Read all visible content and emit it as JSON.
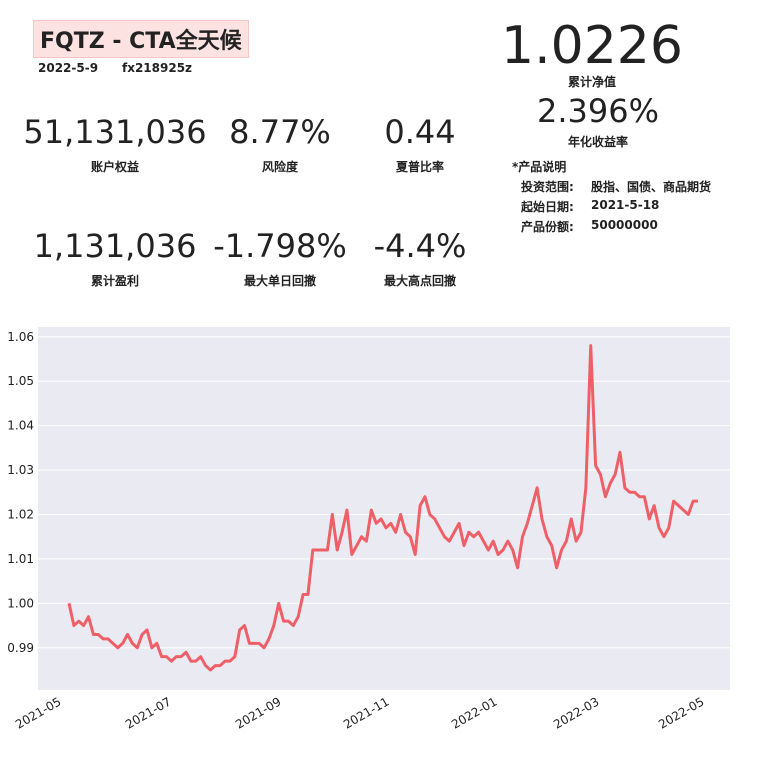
{
  "header": {
    "title": "FQTZ - CTA全天候",
    "date": "2022-5-9",
    "account": "fx218925z"
  },
  "summary": [
    {
      "value": "1.0226",
      "label": "累计净值"
    },
    {
      "value": "2.396%",
      "label": "年化收益率"
    }
  ],
  "metrics": [
    {
      "value": "51,131,036",
      "label": "账户权益"
    },
    {
      "value": "8.77%",
      "label": "风险度"
    },
    {
      "value": "0.44",
      "label": "夏普比率"
    },
    {
      "value": "1,131,036",
      "label": "累计盈利"
    },
    {
      "value": "-1.798%",
      "label": "最大单日回撤"
    },
    {
      "value": "-4.4%",
      "label": "最大高点回撤"
    }
  ],
  "product": {
    "title": "*产品说明",
    "rows": [
      [
        "投资范围:",
        "股指、国债、商品期货"
      ],
      [
        "起始日期:",
        "2021-5-18"
      ],
      [
        "产品份额:",
        "50000000"
      ]
    ]
  },
  "chart_data": {
    "type": "line",
    "color": "#ef5f67",
    "grid": true,
    "xlim": [
      -6.36,
      135.56
    ],
    "xticks": [
      {
        "value": -1.44,
        "label": "2021-05"
      },
      {
        "value": 21.12,
        "label": "2021-07"
      },
      {
        "value": 43.68,
        "label": "2021-09"
      },
      {
        "value": 65.83,
        "label": "2021-11"
      },
      {
        "value": 87.98,
        "label": "2022-01"
      },
      {
        "value": 108.9,
        "label": "2022-03"
      },
      {
        "value": 130.44,
        "label": "2022-05"
      }
    ],
    "ylim": [
      0.9805,
      1.0622
    ],
    "yticks": [
      {
        "value": 0.99,
        "label": "0.99"
      },
      {
        "value": 1.0,
        "label": "1.00"
      },
      {
        "value": 1.01,
        "label": "1.01"
      },
      {
        "value": 1.02,
        "label": "1.02"
      },
      {
        "value": 1.03,
        "label": "1.03"
      },
      {
        "value": 1.04,
        "label": "1.04"
      },
      {
        "value": 1.05,
        "label": "1.05"
      },
      {
        "value": 1.06,
        "label": "1.06"
      }
    ],
    "values": [
      1.0,
      0.995,
      0.996,
      0.995,
      0.997,
      0.993,
      0.993,
      0.992,
      0.992,
      0.991,
      0.99,
      0.991,
      0.993,
      0.991,
      0.99,
      0.993,
      0.994,
      0.99,
      0.991,
      0.988,
      0.988,
      0.987,
      0.988,
      0.988,
      0.989,
      0.987,
      0.987,
      0.988,
      0.986,
      0.985,
      0.986,
      0.986,
      0.987,
      0.987,
      0.988,
      0.994,
      0.995,
      0.991,
      0.991,
      0.991,
      0.99,
      0.992,
      0.995,
      1.0,
      0.996,
      0.996,
      0.995,
      0.997,
      1.002,
      1.002,
      1.012,
      1.012,
      1.012,
      1.012,
      1.02,
      1.012,
      1.016,
      1.021,
      1.011,
      1.013,
      1.015,
      1.014,
      1.021,
      1.018,
      1.019,
      1.017,
      1.018,
      1.016,
      1.02,
      1.016,
      1.015,
      1.011,
      1.022,
      1.024,
      1.02,
      1.019,
      1.017,
      1.015,
      1.014,
      1.016,
      1.018,
      1.013,
      1.016,
      1.015,
      1.016,
      1.014,
      1.012,
      1.014,
      1.011,
      1.012,
      1.014,
      1.012,
      1.008,
      1.015,
      1.018,
      1.022,
      1.026,
      1.019,
      1.015,
      1.013,
      1.008,
      1.012,
      1.014,
      1.019,
      1.014,
      1.016,
      1.026,
      1.058,
      1.031,
      1.029,
      1.024,
      1.027,
      1.029,
      1.034,
      1.026,
      1.025,
      1.025,
      1.024,
      1.024,
      1.019,
      1.022,
      1.017,
      1.015,
      1.017,
      1.023,
      1.022,
      1.021,
      1.02,
      1.023,
      1.023
    ]
  }
}
